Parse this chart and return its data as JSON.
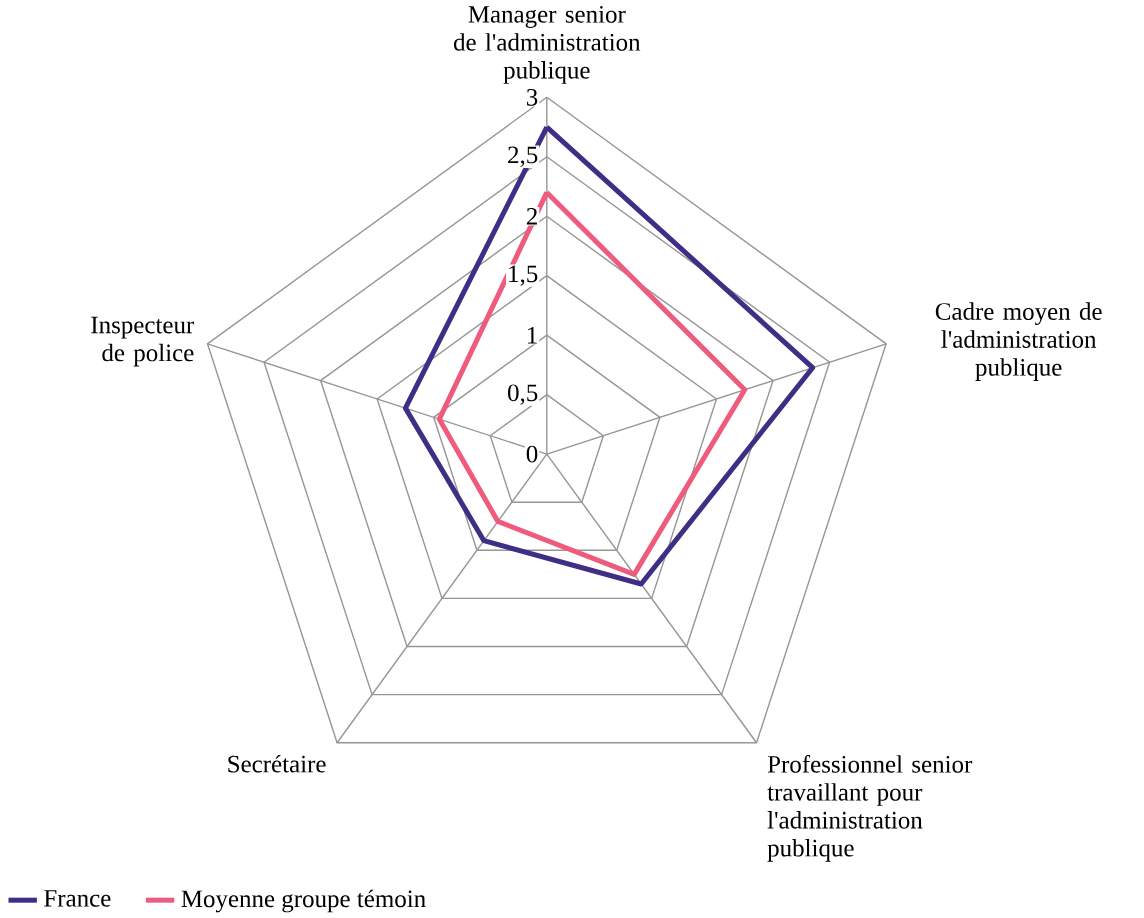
{
  "chart_data": {
    "type": "radar",
    "categories": [
      "Manager senior de l'administration publique",
      "Cadre moyen de l'administration publique",
      "Professionnel senior travaillant pour l'administration publique",
      "Secrétaire",
      "Inspecteur de police"
    ],
    "series": [
      {
        "name": "France",
        "color": "#3f2d86",
        "values": [
          2.75,
          2.35,
          1.35,
          0.9,
          1.25
        ]
      },
      {
        "name": "Moyenne groupe témoin",
        "color": "#ef5b7d",
        "values": [
          2.2,
          1.75,
          1.25,
          0.7,
          0.95
        ]
      }
    ],
    "ylim": [
      0,
      3
    ],
    "yticks": [
      0,
      {
        "value": 0.5,
        "label": "0,5"
      },
      1,
      {
        "value": 1.5,
        "label": "1,5"
      },
      2,
      {
        "value": 2.5,
        "label": "2,5"
      },
      3
    ],
    "legend": "bottom left",
    "line_style": "solid",
    "marker": "none"
  }
}
